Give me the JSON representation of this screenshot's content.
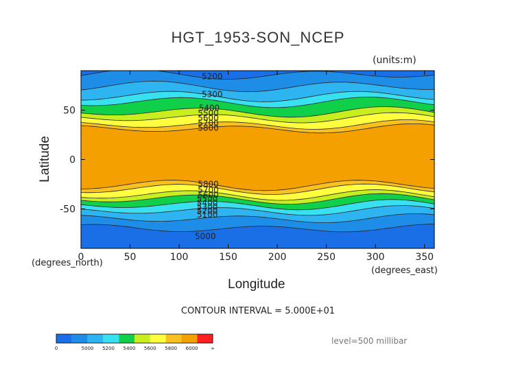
{
  "chart_data": {
    "type": "heatmap",
    "title": "HGT_1953-SON_NCEP",
    "units_label": "(units:m)",
    "xlabel": "Longitude",
    "ylabel": "Latitude",
    "x_units": "(degrees_east)",
    "y_units": "(degrees_north)",
    "xlim": [
      0,
      360
    ],
    "ylim": [
      -90,
      90
    ],
    "x_ticks": [
      0,
      50,
      100,
      150,
      200,
      250,
      300,
      350
    ],
    "y_ticks": [
      50,
      0,
      -50
    ],
    "contour_interval_label": "CONTOUR INTERVAL = 5.000E+01",
    "level_label": "level=500 millibar",
    "colorbar": {
      "labels": [
        "0",
        "5000",
        "5200",
        "5400",
        "5600",
        "5800",
        "6000",
        "∞"
      ],
      "colors": [
        "#1a6fe6",
        "#1e8de8",
        "#2eb4f0",
        "#38e0f0",
        "#10d04a",
        "#c8ee20",
        "#ffff40",
        "#f8c020",
        "#f4a000",
        "#ff2020"
      ]
    },
    "contour_labels": [
      {
        "text": "5200",
        "lon": 123,
        "lat": 84
      },
      {
        "text": "5300",
        "lon": 123,
        "lat": 66
      },
      {
        "text": "5400",
        "lon": 120,
        "lat": 52
      },
      {
        "text": "5500",
        "lon": 119,
        "lat": 47
      },
      {
        "text": "5600",
        "lon": 119,
        "lat": 42
      },
      {
        "text": "5700",
        "lon": 119,
        "lat": 37
      },
      {
        "text": "5800",
        "lon": 119,
        "lat": 32
      },
      {
        "text": "5800",
        "lon": 119,
        "lat": -25
      },
      {
        "text": "5700",
        "lon": 119,
        "lat": -31
      },
      {
        "text": "5600",
        "lon": 119,
        "lat": -36
      },
      {
        "text": "5500",
        "lon": 118,
        "lat": -40
      },
      {
        "text": "5400",
        "lon": 118,
        "lat": -44
      },
      {
        "text": "5300",
        "lon": 118,
        "lat": -48
      },
      {
        "text": "5200",
        "lon": 118,
        "lat": -52
      },
      {
        "text": "5100",
        "lon": 118,
        "lat": -56
      },
      {
        "text": "5000",
        "lon": 116,
        "lat": -78
      }
    ],
    "bands": [
      {
        "color": "#1a6fe6",
        "lat_from": 90,
        "lat_to": 86
      },
      {
        "color": "#1e8de8",
        "lat_from": 86,
        "lat_to": 74
      },
      {
        "color": "#2eb4f0",
        "lat_from": 74,
        "lat_to": 64
      },
      {
        "color": "#38e0f0",
        "lat_from": 64,
        "lat_to": 58
      },
      {
        "color": "#10d04a",
        "lat_from": 58,
        "lat_to": 48
      },
      {
        "color": "#c8ee20",
        "lat_from": 48,
        "lat_to": 42
      },
      {
        "color": "#ffff40",
        "lat_from": 42,
        "lat_to": 35
      },
      {
        "color": "#f8c020",
        "lat_from": 35,
        "lat_to": 31
      },
      {
        "color": "#f4a000",
        "lat_from": 31,
        "lat_to": -26
      },
      {
        "color": "#f8c020",
        "lat_from": -26,
        "lat_to": -30
      },
      {
        "color": "#ffff40",
        "lat_from": -30,
        "lat_to": -36
      },
      {
        "color": "#c8ee20",
        "lat_from": -36,
        "lat_to": -40
      },
      {
        "color": "#10d04a",
        "lat_from": -40,
        "lat_to": -46
      },
      {
        "color": "#38e0f0",
        "lat_from": -46,
        "lat_to": -52
      },
      {
        "color": "#2eb4f0",
        "lat_from": -52,
        "lat_to": -60
      },
      {
        "color": "#1e8de8",
        "lat_from": -60,
        "lat_to": -70
      },
      {
        "color": "#1a6fe6",
        "lat_from": -70,
        "lat_to": -90
      }
    ]
  }
}
